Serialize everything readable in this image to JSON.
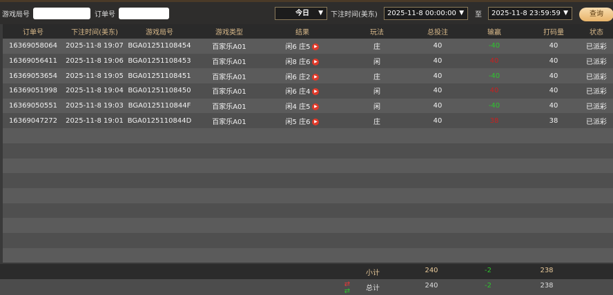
{
  "filters": {
    "game_round_label": "游戏局号",
    "game_round_value": "",
    "order_label": "订单号",
    "order_value": "",
    "period": "今日",
    "time_label": "下注时间(美东)",
    "start": "2025-11-8 00:00:00",
    "to_label": "至",
    "end": "2025-11-8 23:59:59",
    "query_button": "查询"
  },
  "columns": [
    "订单号",
    "下注时间(美东)",
    "游戏局号",
    "游戏类型",
    "结果",
    "玩法",
    "总投注",
    "输赢",
    "打码量",
    "状态"
  ],
  "rows": [
    {
      "order": "16369058064",
      "time": "2025-11-8 19:07",
      "round": "BGA01251108454",
      "type": "百家乐A01",
      "result": "闲6 庄5",
      "play": "庄",
      "bet": "40",
      "win": "-40",
      "win_sign": "neg",
      "code": "40",
      "status": "已派彩"
    },
    {
      "order": "16369056411",
      "time": "2025-11-8 19:06",
      "round": "BGA01251108453",
      "type": "百家乐A01",
      "result": "闲8 庄6",
      "play": "闲",
      "bet": "40",
      "win": "40",
      "win_sign": "pos",
      "code": "40",
      "status": "已派彩"
    },
    {
      "order": "16369053654",
      "time": "2025-11-8 19:05",
      "round": "BGA01251108451",
      "type": "百家乐A01",
      "result": "闲6 庄2",
      "play": "庄",
      "bet": "40",
      "win": "-40",
      "win_sign": "neg",
      "code": "40",
      "status": "已派彩"
    },
    {
      "order": "16369051998",
      "time": "2025-11-8 19:04",
      "round": "BGA01251108450",
      "type": "百家乐A01",
      "result": "闲6 庄4",
      "play": "闲",
      "bet": "40",
      "win": "40",
      "win_sign": "pos",
      "code": "40",
      "status": "已派彩"
    },
    {
      "order": "16369050551",
      "time": "2025-11-8 19:03",
      "round": "BGA0125110844F",
      "type": "百家乐A01",
      "result": "闲4 庄5",
      "play": "闲",
      "bet": "40",
      "win": "-40",
      "win_sign": "neg",
      "code": "40",
      "status": "已派彩"
    },
    {
      "order": "16369047272",
      "time": "2025-11-8 19:01",
      "round": "BGA0125110844D",
      "type": "百家乐A01",
      "result": "闲5 庄6",
      "play": "庄",
      "bet": "40",
      "win": "38",
      "win_sign": "pos",
      "code": "38",
      "status": "已派彩"
    }
  ],
  "subtotal": {
    "label": "小计",
    "bet": "240",
    "win": "-2",
    "code": "238"
  },
  "total": {
    "label": "总计",
    "bet": "240",
    "win": "-2",
    "code": "238"
  },
  "colors": {
    "accent": "#d9b98a",
    "negative": "#2ec52e",
    "positive": "#c82020"
  }
}
